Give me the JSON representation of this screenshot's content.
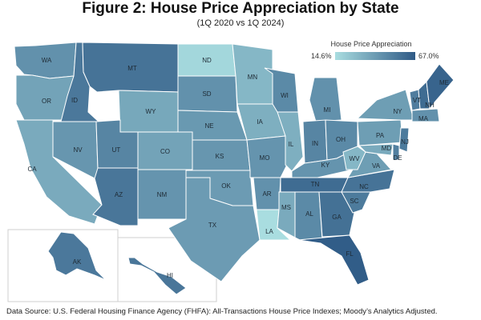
{
  "title": "Figure 2: House Price Appreciation by State",
  "subtitle": "(1Q 2020 vs 1Q 2024)",
  "legend": {
    "title": "House Price Appreciation",
    "min_label": "14.6%",
    "max_label": "67.0%",
    "min_value": 14.6,
    "max_value": 67.0,
    "color_low": "#a9dde0",
    "color_high": "#2f5a86"
  },
  "source": "Data Source: U.S. Federal Housing Finance Agency (FHFA): All-Transactions House Price Indexes; Moody’s Analytics Adjusted.",
  "states": [
    {
      "abbr": "WA",
      "value": 45
    },
    {
      "abbr": "OR",
      "value": 38
    },
    {
      "abbr": "CA",
      "value": 35
    },
    {
      "abbr": "ID",
      "value": 55
    },
    {
      "abbr": "NV",
      "value": 43
    },
    {
      "abbr": "MT",
      "value": 57
    },
    {
      "abbr": "WY",
      "value": 36
    },
    {
      "abbr": "UT",
      "value": 50
    },
    {
      "abbr": "AZ",
      "value": 56
    },
    {
      "abbr": "CO",
      "value": 38
    },
    {
      "abbr": "NM",
      "value": 44
    },
    {
      "abbr": "ND",
      "value": 17
    },
    {
      "abbr": "SD",
      "value": 45
    },
    {
      "abbr": "NE",
      "value": 42
    },
    {
      "abbr": "KS",
      "value": 43
    },
    {
      "abbr": "OK",
      "value": 41
    },
    {
      "abbr": "TX",
      "value": 41
    },
    {
      "abbr": "MN",
      "value": 30
    },
    {
      "abbr": "IA",
      "value": 33
    },
    {
      "abbr": "MO",
      "value": 44
    },
    {
      "abbr": "AR",
      "value": 45
    },
    {
      "abbr": "LA",
      "value": 14.6
    },
    {
      "abbr": "WI",
      "value": 48
    },
    {
      "abbr": "IL",
      "value": 33
    },
    {
      "abbr": "MS",
      "value": 35
    },
    {
      "abbr": "MI",
      "value": 45
    },
    {
      "abbr": "IN",
      "value": 50
    },
    {
      "abbr": "OH",
      "value": 48
    },
    {
      "abbr": "KY",
      "value": 44
    },
    {
      "abbr": "TN",
      "value": 60
    },
    {
      "abbr": "AL",
      "value": 48
    },
    {
      "abbr": "GA",
      "value": 58
    },
    {
      "abbr": "FL",
      "value": 66
    },
    {
      "abbr": "SC",
      "value": 54
    },
    {
      "abbr": "NC",
      "value": 57
    },
    {
      "abbr": "VA",
      "value": 40
    },
    {
      "abbr": "WV",
      "value": 30
    },
    {
      "abbr": "PA",
      "value": 40
    },
    {
      "abbr": "NY",
      "value": 40
    },
    {
      "abbr": "VT",
      "value": 53
    },
    {
      "abbr": "NH",
      "value": 60
    },
    {
      "abbr": "ME",
      "value": 63
    },
    {
      "abbr": "MA",
      "value": 45
    },
    {
      "abbr": "NJ",
      "value": 54
    },
    {
      "abbr": "MD",
      "value": 35
    },
    {
      "abbr": "DE",
      "value": 52
    },
    {
      "abbr": "AK",
      "value": 55
    },
    {
      "abbr": "HI",
      "value": 56
    }
  ]
}
